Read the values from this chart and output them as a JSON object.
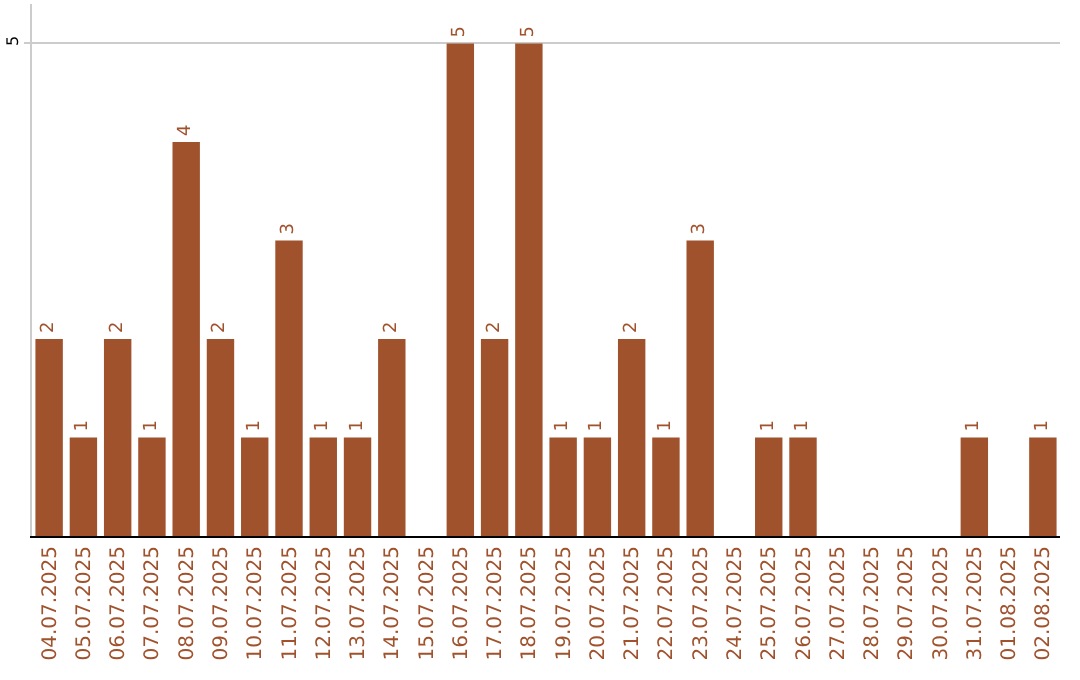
{
  "chart_data": {
    "type": "bar",
    "categories": [
      "04.07.2025",
      "05.07.2025",
      "06.07.2025",
      "07.07.2025",
      "08.07.2025",
      "09.07.2025",
      "10.07.2025",
      "11.07.2025",
      "12.07.2025",
      "13.07.2025",
      "14.07.2025",
      "15.07.2025",
      "16.07.2025",
      "17.07.2025",
      "18.07.2025",
      "19.07.2025",
      "20.07.2025",
      "21.07.2025",
      "22.07.2025",
      "23.07.2025",
      "24.07.2025",
      "25.07.2025",
      "26.07.2025",
      "27.07.2025",
      "28.07.2025",
      "29.07.2025",
      "30.07.2025",
      "31.07.2025",
      "01.08.2025",
      "02.08.2025"
    ],
    "values": [
      2,
      1,
      2,
      1,
      4,
      2,
      1,
      3,
      1,
      1,
      2,
      0,
      5,
      2,
      5,
      1,
      1,
      2,
      1,
      3,
      0,
      1,
      1,
      0,
      0,
      0,
      0,
      1,
      0,
      1
    ],
    "value_labels": [
      "2",
      "1",
      "2",
      "1",
      "4",
      "2",
      "1",
      "3",
      "1",
      "1",
      "2",
      null,
      "5",
      "2",
      "5",
      "1",
      "1",
      "2",
      "1",
      "3",
      null,
      "1",
      "1",
      null,
      null,
      null,
      null,
      "1",
      null,
      "1"
    ],
    "color": "#a0522d",
    "ylim": [
      0,
      5.4
    ],
    "yticks": [
      5
    ],
    "grid": "y",
    "legend": false
  }
}
